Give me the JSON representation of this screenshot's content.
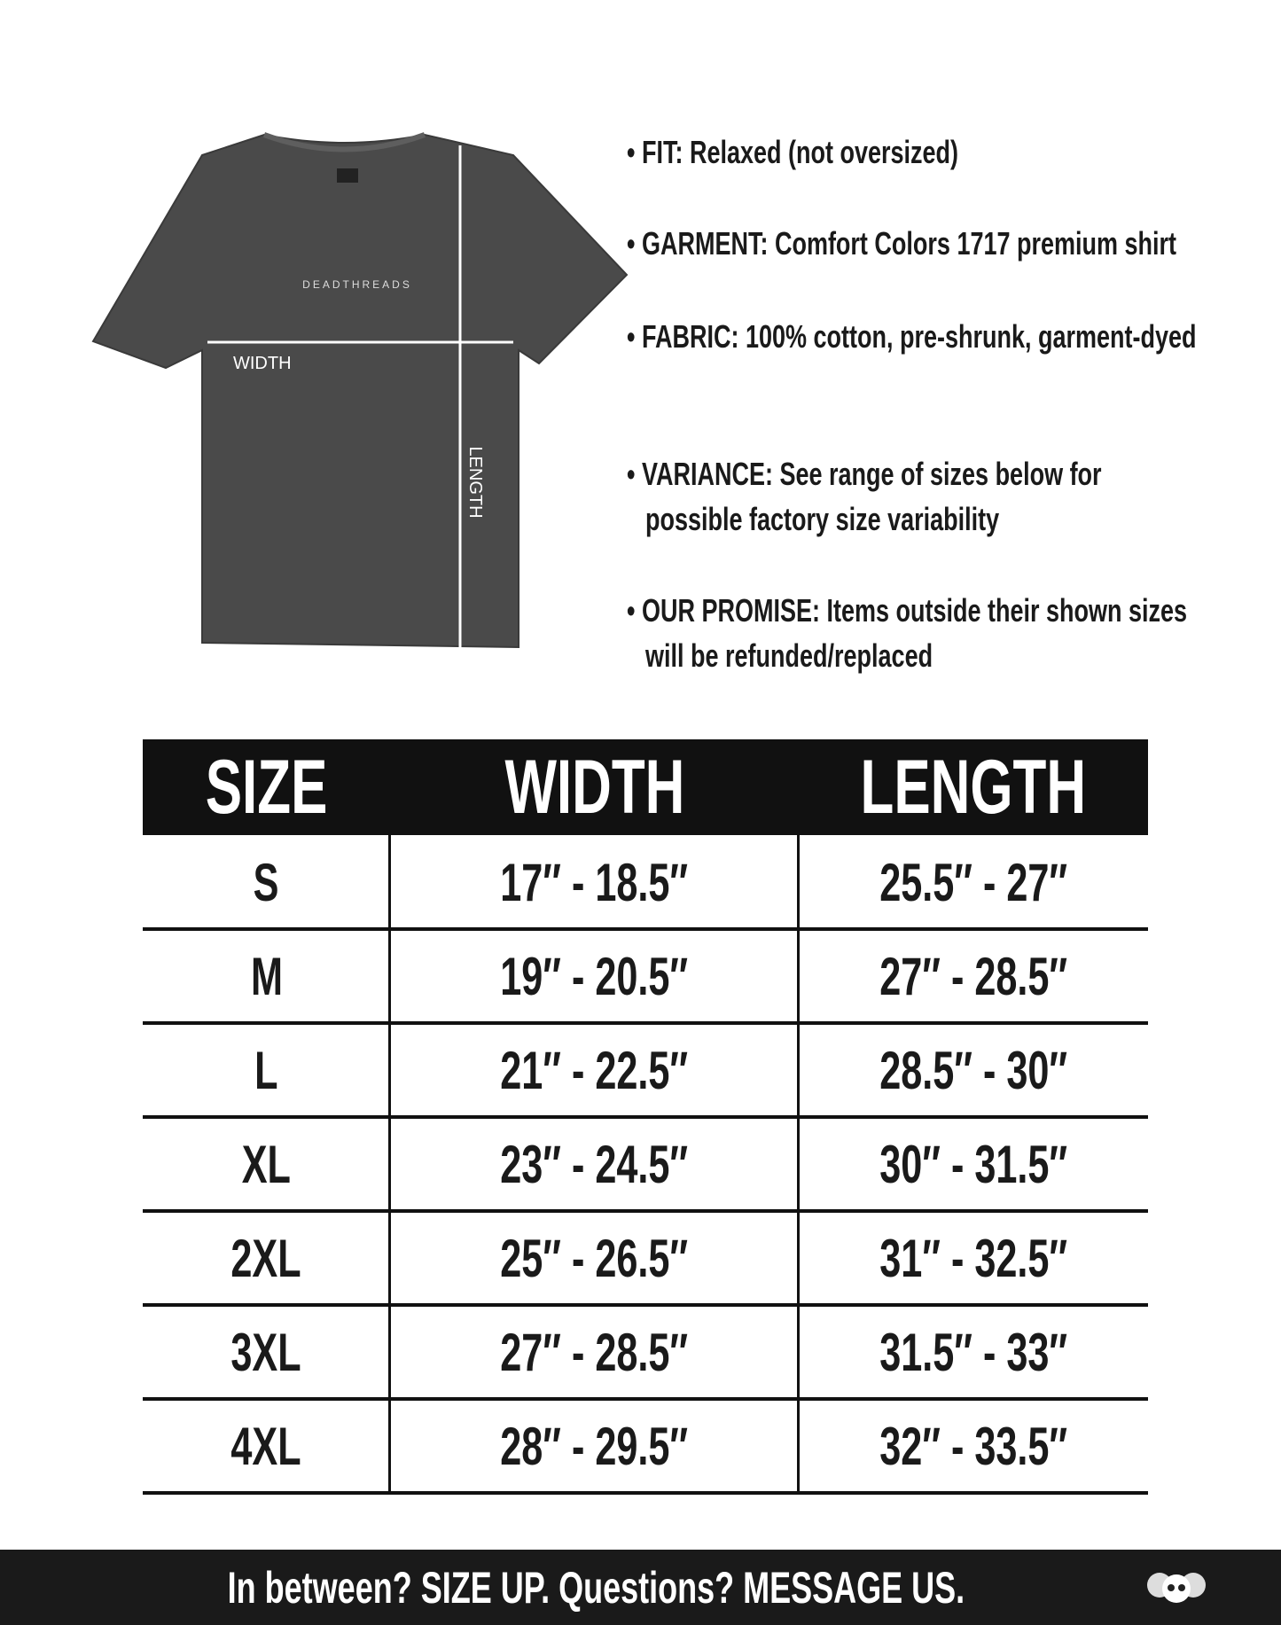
{
  "shirt": {
    "brand": "DEADTHREADS",
    "width_label": "WIDTH",
    "length_label": "LENGTH"
  },
  "bullets": [
    "FIT: Relaxed (not oversized)",
    "GARMENT: Comfort Colors 1717 premium shirt",
    "FABRIC: 100% cotton, pre-shrunk, garment-dyed",
    "VARIANCE: See range of sizes below for possible factory size variability",
    "OUR PROMISE: Items outside their shown sizes will be refunded/replaced"
  ],
  "table": {
    "headers": [
      "SIZE",
      "WIDTH",
      "LENGTH"
    ],
    "rows": [
      [
        "S",
        "17″ - 18.5″",
        "25.5″ - 27″"
      ],
      [
        "M",
        "19″ - 20.5″",
        "27″ - 28.5″"
      ],
      [
        "L",
        "21″ - 22.5″",
        "28.5″ - 30″"
      ],
      [
        "XL",
        "23″ - 24.5″",
        "30″ - 31.5″"
      ],
      [
        "2XL",
        "25″ - 26.5″",
        "31″ - 32.5″"
      ],
      [
        "3XL",
        "27″ - 28.5″",
        "31.5″ - 33″"
      ],
      [
        "4XL",
        "28″ - 29.5″",
        "32″ - 33.5″"
      ]
    ]
  },
  "footer": "In between? SIZE UP. Questions? MESSAGE US."
}
